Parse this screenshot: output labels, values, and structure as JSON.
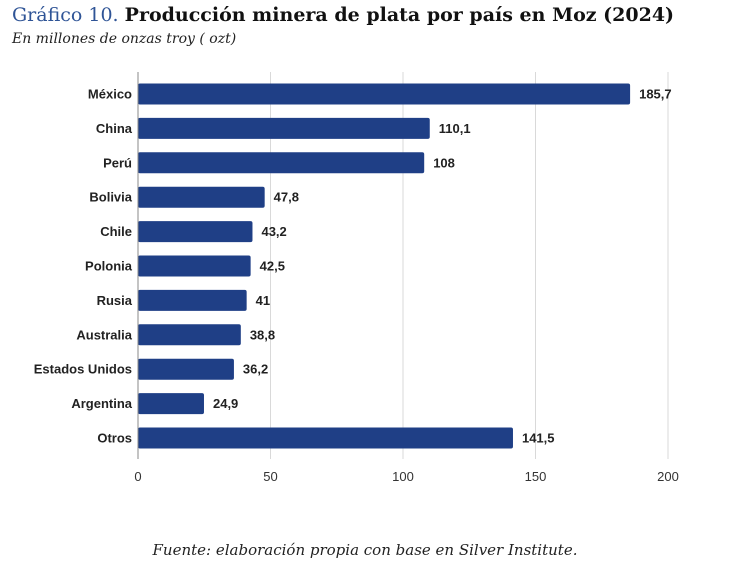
{
  "header": {
    "title_prefix": "Gráfico 10.",
    "title_main": "Producción minera de plata por país en Moz (2024)",
    "subtitle": "En millones de onzas troy ( ozt)"
  },
  "footer": {
    "source": "Fuente: elaboración propia con base en Silver Institute."
  },
  "colors": {
    "bar": "#1f3f86",
    "grid": "#d9d9d9",
    "axis": "#888888"
  },
  "chart_data": {
    "type": "bar",
    "orientation": "horizontal",
    "title": "Producción minera de plata por país en Moz (2024)",
    "xlabel": "",
    "ylabel": "",
    "categories": [
      "México",
      "China",
      "Perú",
      "Bolivia",
      "Chile",
      "Polonia",
      "Rusia",
      "Australia",
      "Estados Unidos",
      "Argentina",
      "Otros"
    ],
    "values": [
      185.7,
      110.1,
      108,
      47.8,
      43.2,
      42.5,
      41,
      38.8,
      36.2,
      24.9,
      141.5
    ],
    "value_labels": [
      "185,7",
      "110,1",
      "108",
      "47,8",
      "43,2",
      "42,5",
      "41",
      "38,8",
      "36,2",
      "24,9",
      "141,5"
    ],
    "xlim": [
      0,
      200
    ],
    "xticks": [
      0,
      50,
      100,
      150,
      200
    ],
    "xtick_labels": [
      "0",
      "50",
      "100",
      "150",
      "200"
    ],
    "grid": true,
    "legend": "none"
  }
}
